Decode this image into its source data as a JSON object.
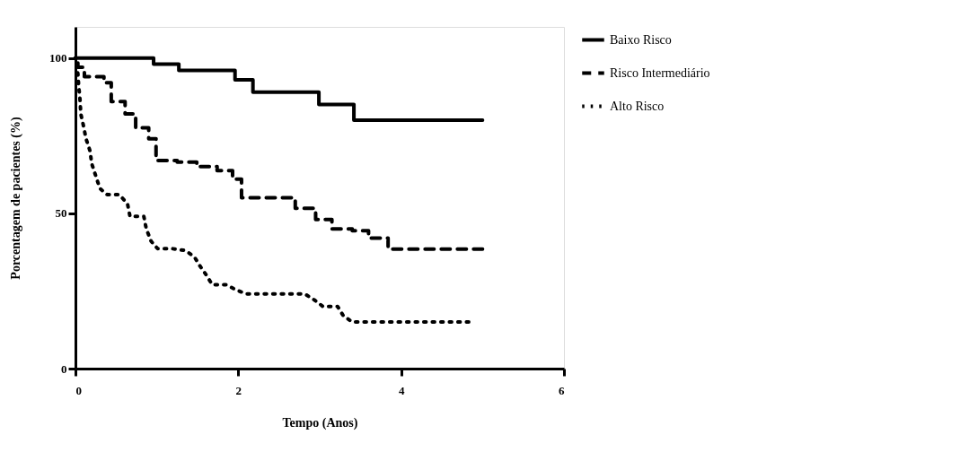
{
  "chart_data": {
    "type": "step",
    "xlabel": "Tempo (Anos)",
    "ylabel": "Porcentagem de pacientes (%)",
    "xlim": [
      0,
      6
    ],
    "xticks": [
      0,
      2,
      4,
      6
    ],
    "ylim": [
      0,
      110
    ],
    "yticks": [
      0,
      50,
      100
    ],
    "grid": false,
    "legend": "right",
    "marker": "none",
    "series": [
      {
        "name": "Baixo Risco",
        "color": "#000000",
        "line_style": "solid",
        "x": [
          0,
          0.96,
          1.27,
          1.96,
          2.18,
          2.99,
          3.42,
          5.0
        ],
        "values": [
          100,
          98,
          96,
          93,
          89,
          85,
          80,
          80
        ]
      },
      {
        "name": "Risco Intermediário",
        "color": "#000000",
        "line_style": "dashed",
        "x": [
          0,
          0.03,
          0.11,
          0.35,
          0.44,
          0.61,
          0.74,
          0.9,
          0.99,
          1.25,
          1.49,
          1.74,
          1.93,
          2.04,
          2.7,
          2.95,
          3.15,
          3.4,
          3.6,
          3.84,
          5.0
        ],
        "values": [
          100,
          97,
          94,
          92,
          86,
          82,
          77.5,
          74,
          67,
          66.5,
          65,
          63.7,
          61,
          55,
          51.6,
          48,
          45,
          44.4,
          42,
          38.5,
          38.5
        ]
      },
      {
        "name": "Alto Risco",
        "color": "#000000",
        "line_style": "dotted",
        "type": "line",
        "x": [
          0,
          0.03,
          0.04,
          0.055,
          0.066,
          0.1,
          0.13,
          0.18,
          0.2,
          0.25,
          0.3,
          0.39,
          0.54,
          0.64,
          0.67,
          0.84,
          0.87,
          0.93,
          1.01,
          1.19,
          1.35,
          1.46,
          1.53,
          1.61,
          1.68,
          1.85,
          1.97,
          2.1,
          2.82,
          2.94,
          3.04,
          3.22,
          3.29,
          3.4,
          4.83
        ],
        "values": [
          100,
          95,
          91,
          87,
          82,
          78,
          74,
          70,
          66,
          62,
          58,
          56,
          56,
          53,
          49,
          49,
          45,
          41,
          38.6,
          38.6,
          38,
          36,
          33,
          30,
          27,
          27,
          25.4,
          24,
          24,
          22,
          20,
          20,
          17,
          15,
          15
        ]
      }
    ]
  }
}
